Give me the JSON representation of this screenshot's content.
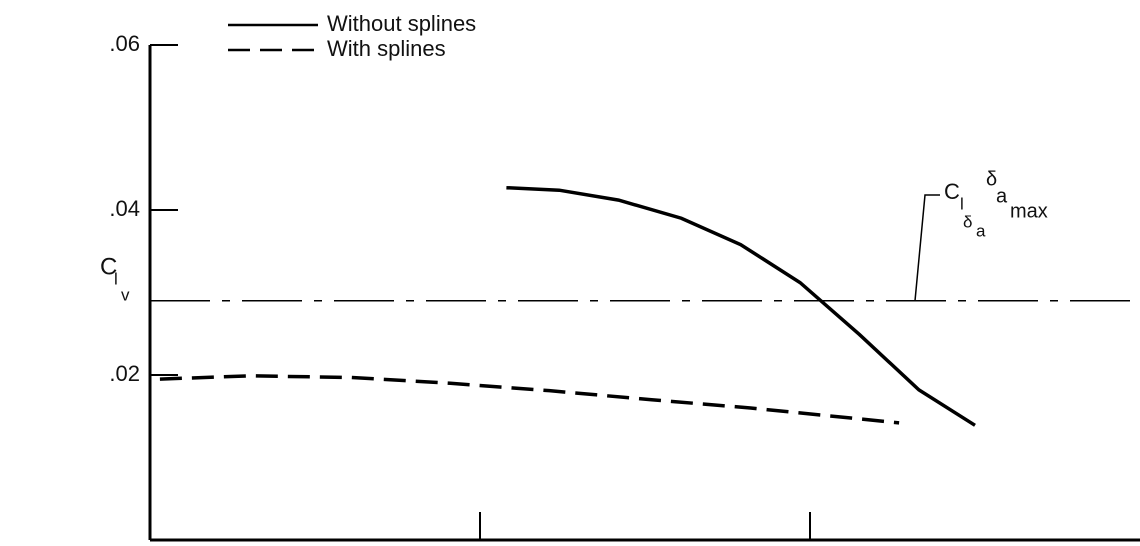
{
  "chart_data": {
    "type": "line",
    "y_label_parts": [
      "C",
      "l",
      "v"
    ],
    "series": [
      {
        "name": "Without splines",
        "color": "#000000",
        "dash": "solid",
        "x": [
          1.08,
          1.24,
          1.42,
          1.61,
          1.79,
          1.97,
          2.15,
          2.33,
          2.5
        ],
        "values": [
          0.0427,
          0.0424,
          0.0412,
          0.039,
          0.0358,
          0.0312,
          0.0249,
          0.0182,
          0.0139
        ]
      },
      {
        "name": "With splines",
        "color": "#000000",
        "dash": "dashed",
        "x": [
          0.03,
          0.3,
          0.61,
          0.91,
          1.21,
          1.52,
          1.82,
          2.12,
          2.27
        ],
        "values": [
          0.0195,
          0.0199,
          0.0197,
          0.019,
          0.0181,
          0.017,
          0.016,
          0.0148,
          0.0142
        ]
      }
    ],
    "reference_line": {
      "value": 0.029,
      "dash": "dashdot"
    },
    "annotation_parts": [
      "C",
      "l",
      "δ",
      "a",
      "δ",
      "a",
      "max"
    ],
    "xlim": [
      0,
      3
    ],
    "xticks": [
      1,
      2
    ],
    "ylim": [
      0,
      0.06
    ],
    "yticks": [
      {
        "value": 0.02,
        "label": ".02"
      },
      {
        "value": 0.04,
        "label": ".04"
      },
      {
        "value": 0.06,
        "label": ".06"
      }
    ],
    "legend": "top-left"
  }
}
